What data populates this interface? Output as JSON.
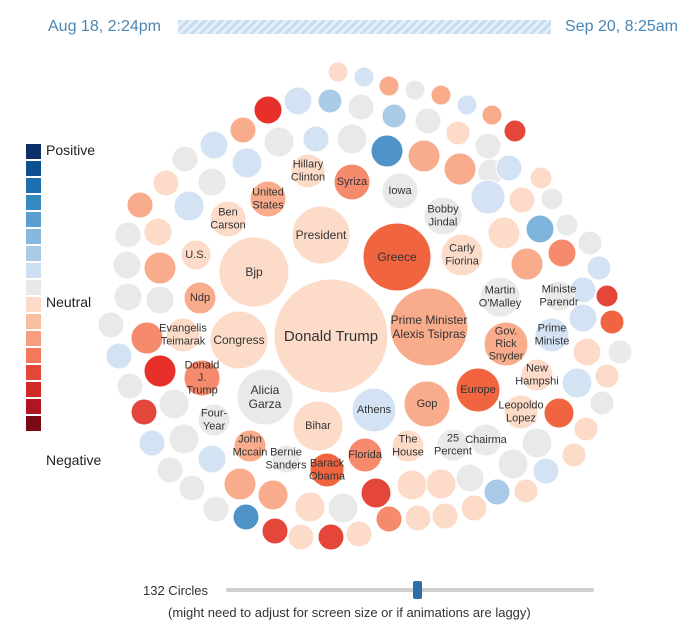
{
  "time": {
    "start": "Aug 18, 2:24pm",
    "end": "Sep 20, 8:25am"
  },
  "legend": {
    "top_label": "Positive",
    "mid_label": "Neutral",
    "bottom_label": "Negative",
    "colors": [
      "#0b2f66",
      "#0e4f92",
      "#1f6fb0",
      "#3787c0",
      "#5a9fcf",
      "#86b9dd",
      "#aacbe6",
      "#ccdff1",
      "#e8e8e8",
      "#fcdcc9",
      "#f9bea0",
      "#f89e80",
      "#f3785c",
      "#e5463a",
      "#d02a24",
      "#ad1622",
      "#7a0a14"
    ]
  },
  "slider": {
    "label": "132 Circles",
    "value": 132,
    "fraction": 0.52,
    "note": "(might need to adjust for screen size or if animations are laggy)"
  },
  "chart_data": {
    "type": "bubble",
    "size_measure": "mentions",
    "color_measure": "sentiment",
    "labeled_topics": [
      {
        "label": "Donald Trump",
        "size": 100,
        "sentiment": -1
      },
      {
        "label": "Prime Minister\nAlexis Tsipras",
        "size": 68,
        "sentiment": -2
      },
      {
        "label": "Greece",
        "size": 60,
        "sentiment": -5
      },
      {
        "label": "Bjp",
        "size": 52,
        "sentiment": -1
      },
      {
        "label": "President",
        "size": 40,
        "sentiment": -1
      },
      {
        "label": "Congress",
        "size": 36,
        "sentiment": -1
      },
      {
        "label": "Alicia\nGarza",
        "size": 32,
        "sentiment": 0
      },
      {
        "label": "Bihar",
        "size": 29,
        "sentiment": -1
      },
      {
        "label": "Gop",
        "size": 27,
        "sentiment": -2
      },
      {
        "label": "Athens",
        "size": 27,
        "sentiment": 1
      },
      {
        "label": "Europe",
        "size": 26,
        "sentiment": -5
      },
      {
        "label": "Martin\nO'Malley",
        "size": 26,
        "sentiment": 0
      },
      {
        "label": "Carly\nFiorina",
        "size": 25,
        "sentiment": -1
      },
      {
        "label": "Gov.\nRick\nSnyder",
        "size": 24,
        "sentiment": -2
      },
      {
        "label": "Bobby\nJindal",
        "size": 22,
        "sentiment": 0
      },
      {
        "label": "Iowa",
        "size": 21,
        "sentiment": 0
      },
      {
        "label": "Syriza",
        "size": 21,
        "sentiment": -3
      },
      {
        "label": "Hillary\nClinton",
        "size": 20,
        "sentiment": -1
      },
      {
        "label": "United\nStates",
        "size": 20,
        "sentiment": -2
      },
      {
        "label": "Ben\nCarson",
        "size": 21,
        "sentiment": -1
      },
      {
        "label": "U.S.",
        "size": 19,
        "sentiment": -1
      },
      {
        "label": "Ndp",
        "size": 20,
        "sentiment": -2
      },
      {
        "label": "Evangelis\nTeimarak",
        "size": 20,
        "sentiment": -1
      },
      {
        "label": "Donald\nJ.\nTrump",
        "size": 20,
        "sentiment": -3
      },
      {
        "label": "Four-\nYear",
        "size": 20,
        "sentiment": 0
      },
      {
        "label": "John\nMccain",
        "size": 20,
        "sentiment": -2
      },
      {
        "label": "Bernie\nSanders",
        "size": 20,
        "sentiment": 0
      },
      {
        "label": "Barack\nObama",
        "size": 20,
        "sentiment": -5
      },
      {
        "label": "Florida",
        "size": 19,
        "sentiment": -3
      },
      {
        "label": "The\nHouse",
        "size": 19,
        "sentiment": -1
      },
      {
        "label": "25\nPercent",
        "size": 20,
        "sentiment": 0
      },
      {
        "label": "Chairma",
        "size": 20,
        "sentiment": 0
      },
      {
        "label": "Leopoldo\nLopez",
        "size": 20,
        "sentiment": -1
      },
      {
        "label": "New\nHampshi",
        "size": 20,
        "sentiment": -1
      },
      {
        "label": "Prime\nMiniste",
        "size": 19,
        "sentiment": 1
      },
      {
        "label": "Ministe\nParendr",
        "size": 19,
        "sentiment": 0
      }
    ]
  }
}
